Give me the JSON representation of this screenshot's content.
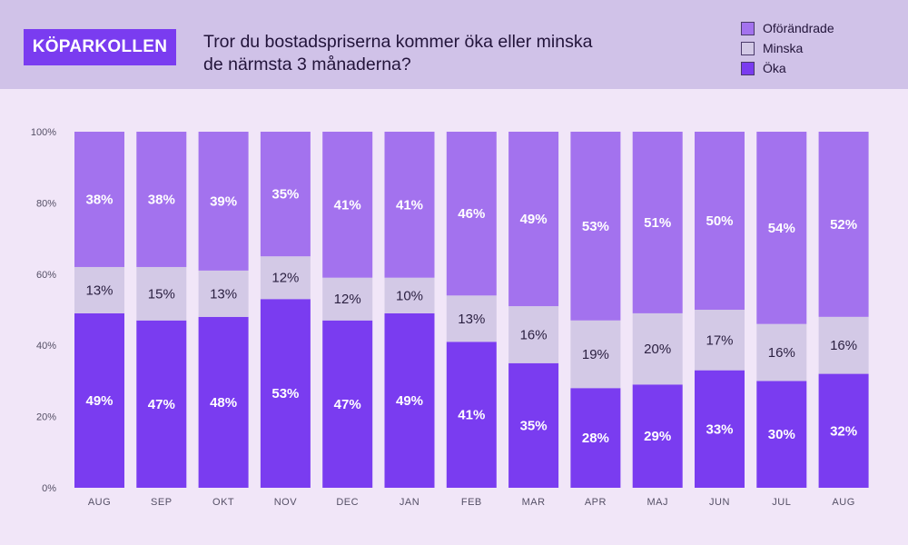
{
  "brand": {
    "label": "KÖPARKOLLEN"
  },
  "title_lines": [
    "Tror du bostadspriserna kommer öka eller minska",
    "de närmsta 3 månaderna?"
  ],
  "legend": [
    {
      "label": "Oförändrade",
      "color": "#a372ee"
    },
    {
      "label": "Minska",
      "color": "#d3c9e6"
    },
    {
      "label": "Öka",
      "color": "#7a3cf0"
    }
  ],
  "chart_data": {
    "type": "bar",
    "stacked": true,
    "title": "Tror du bostadspriserna kommer öka eller minska de närmsta 3 månaderna?",
    "categories": [
      "AUG",
      "SEP",
      "OKT",
      "NOV",
      "DEC",
      "JAN",
      "FEB",
      "MAR",
      "APR",
      "MAJ",
      "JUN",
      "JUL",
      "AUG"
    ],
    "series": [
      {
        "name": "Öka",
        "color": "#7a3cf0",
        "label_color": "#ffffff",
        "values": [
          49,
          47,
          48,
          53,
          47,
          49,
          41,
          35,
          28,
          29,
          33,
          30,
          32
        ]
      },
      {
        "name": "Minska",
        "color": "#d3c9e6",
        "label_color": "#2a1f40",
        "values": [
          13,
          15,
          13,
          12,
          12,
          10,
          13,
          16,
          19,
          20,
          17,
          16,
          16
        ]
      },
      {
        "name": "Oförändrade",
        "color": "#a372ee",
        "label_color": "#ffffff",
        "values": [
          38,
          38,
          39,
          35,
          41,
          41,
          46,
          49,
          53,
          51,
          50,
          54,
          52
        ]
      }
    ],
    "y_ticks": [
      "0%",
      "20%",
      "40%",
      "60%",
      "80%",
      "100%"
    ],
    "ylim": [
      0,
      100
    ],
    "grid": false,
    "legend_position": "top-right"
  }
}
